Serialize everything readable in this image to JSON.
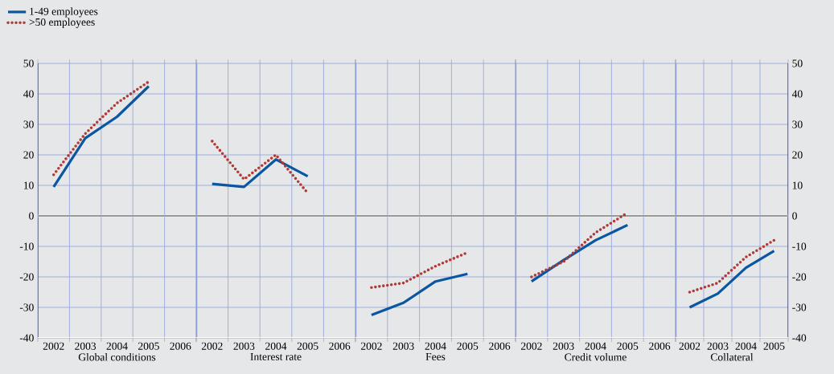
{
  "chart_data": [
    {
      "type": "line",
      "xlabel": "Global conditions",
      "categories": [
        "2002",
        "2003",
        "2004",
        "2005",
        "2006"
      ],
      "ylim": [
        -40,
        50
      ],
      "yticks": [
        -40,
        -30,
        -20,
        -10,
        0,
        10,
        20,
        30,
        40,
        50
      ],
      "grid": true,
      "legend": "top left",
      "ref_lines": [
        {
          "axis": "y",
          "value": 0,
          "color": "#000000"
        }
      ],
      "series": [
        {
          "name": "1-49 employees",
          "color": "#0a56a0",
          "line_style": "solid",
          "values": [
            9.5,
            25.5,
            32.5,
            42.5,
            null
          ]
        },
        {
          "name": ">50 employees",
          "color": "#b03a36",
          "line_style": "dotted",
          "values": [
            13.5,
            27,
            37,
            44,
            null
          ]
        }
      ]
    },
    {
      "type": "line",
      "xlabel": "Interest rate",
      "categories": [
        "2002",
        "2003",
        "2004",
        "2005",
        "2006"
      ],
      "ylim": [
        -40,
        50
      ],
      "yticks": [
        -40,
        -30,
        -20,
        -10,
        0,
        10,
        20,
        30,
        40,
        50
      ],
      "grid": true,
      "tick_labels": "x",
      "ref_lines": [
        {
          "axis": "y",
          "value": 0,
          "color": "#000000"
        }
      ],
      "series": [
        {
          "color": "#0a56a0",
          "line_style": "solid",
          "values": [
            10.5,
            9.5,
            18.5,
            13,
            null
          ]
        },
        {
          "color": "#b03a36",
          "line_style": "dotted",
          "values": [
            24.5,
            12,
            20,
            7.5,
            null
          ]
        }
      ]
    },
    {
      "type": "line",
      "xlabel": "Fees",
      "categories": [
        "2002",
        "2003",
        "2004",
        "2005",
        "2006"
      ],
      "ylim": [
        -40,
        50
      ],
      "yticks": [
        -40,
        -30,
        -20,
        -10,
        0,
        10,
        20,
        30,
        40,
        50
      ],
      "grid": true,
      "tick_labels": "x",
      "ref_lines": [
        {
          "axis": "y",
          "value": 0,
          "color": "#000000"
        }
      ],
      "series": [
        {
          "color": "#0a56a0",
          "line_style": "solid",
          "values": [
            -32.5,
            -28.5,
            -21.5,
            -19,
            null
          ]
        },
        {
          "color": "#b03a36",
          "line_style": "dotted",
          "values": [
            -23.5,
            -22,
            -16.5,
            -12,
            null
          ]
        }
      ]
    },
    {
      "type": "line",
      "xlabel": "Credit volume",
      "categories": [
        "2002",
        "2003",
        "2004",
        "2005",
        "2006"
      ],
      "ylim": [
        -40,
        50
      ],
      "yticks": [
        -40,
        -30,
        -20,
        -10,
        0,
        10,
        20,
        30,
        40,
        50
      ],
      "grid": true,
      "tick_labels": "x",
      "ref_lines": [
        {
          "axis": "y",
          "value": 0,
          "color": "#000000"
        }
      ],
      "series": [
        {
          "color": "#0a56a0",
          "line_style": "solid",
          "values": [
            -21.5,
            -14.5,
            -8,
            -3,
            null
          ]
        },
        {
          "color": "#b03a36",
          "line_style": "dotted",
          "values": [
            -20,
            -15,
            -5.5,
            1,
            null
          ]
        }
      ]
    },
    {
      "type": "line",
      "xlabel": "Collateral",
      "categories": [
        "2002",
        "2003",
        "2004",
        "2005"
      ],
      "ylim": [
        -40,
        50
      ],
      "yticks": [
        -40,
        -30,
        -20,
        -10,
        0,
        10,
        20,
        30,
        40,
        50
      ],
      "grid": true,
      "ref_lines": [
        {
          "axis": "y",
          "value": 0,
          "color": "#000000"
        }
      ],
      "series": [
        {
          "color": "#0a56a0",
          "line_style": "solid",
          "values": [
            -30,
            -25.5,
            -17,
            -11.5
          ]
        },
        {
          "color": "#b03a36",
          "line_style": "dotted",
          "values": [
            -25,
            -22,
            -13.5,
            -8
          ]
        }
      ]
    }
  ]
}
